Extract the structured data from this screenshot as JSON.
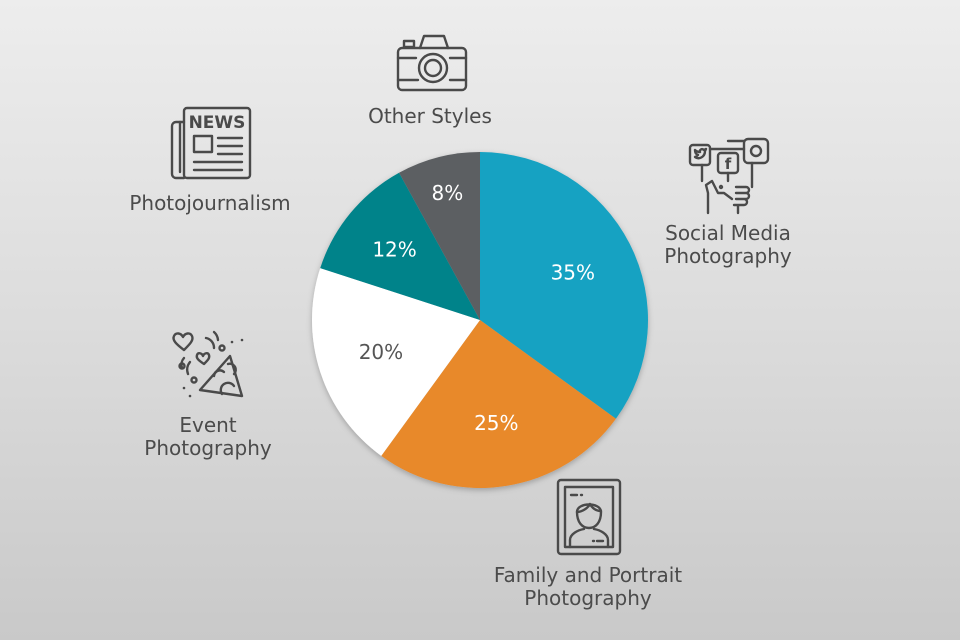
{
  "chart_data": {
    "type": "pie",
    "title": "",
    "start_angle": "12 o'clock, clockwise",
    "categories": [
      "Social Media Photography",
      "Family and Portrait Photography",
      "Event Photography",
      "Photojournalism",
      "Other Styles"
    ],
    "values": [
      35,
      25,
      20,
      12,
      8
    ],
    "value_labels": [
      "35%",
      "25%",
      "20%",
      "12%",
      "8%"
    ],
    "colors": [
      "#17a2c2",
      "#e8892a",
      "#ffffff",
      "#00838a",
      "#5b5f62"
    ],
    "label_colors": [
      "#ffffff",
      "#ffffff",
      "#555555",
      "#ffffff",
      "#ffffff"
    ],
    "icons": [
      "social-media-hand-icon",
      "portrait-frame-icon",
      "party-confetti-icon",
      "newspaper-icon",
      "camera-icon"
    ]
  },
  "labels": {
    "social": [
      "Social Media",
      "Photography"
    ],
    "family": [
      "Family and Portrait",
      "Photography"
    ],
    "event": [
      "Event",
      "Photography"
    ],
    "photojournalism": "Photojournalism",
    "other": "Other Styles"
  },
  "icon_news_text": "NEWS",
  "icon_fb_text": "f"
}
